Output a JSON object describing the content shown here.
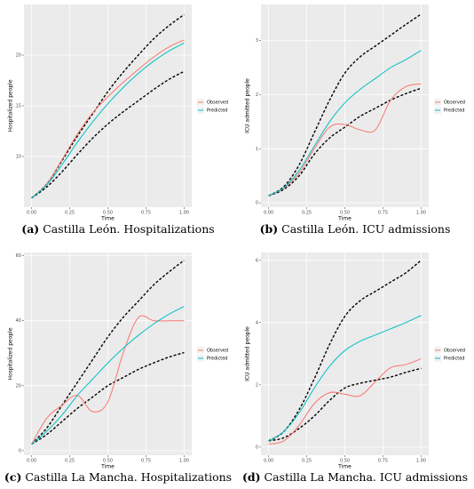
{
  "chart_data": [
    {
      "type": "line",
      "caption_label": "(a)",
      "caption": "Castilla León. Hospitalizations",
      "xlabel": "Time",
      "ylabel": "Hospitalized people",
      "x": [
        0,
        0.1,
        0.2,
        0.3,
        0.4,
        0.5,
        0.6,
        0.7,
        0.8,
        0.9,
        1
      ],
      "xlim": [
        -0.05,
        1.05
      ],
      "xticks": [
        {
          "value": 0,
          "label": "0.00"
        },
        {
          "value": 0.25,
          "label": "0.25"
        },
        {
          "value": 0.5,
          "label": "0.50"
        },
        {
          "value": 0.75,
          "label": "0.75"
        },
        {
          "value": 1,
          "label": "1.00"
        }
      ],
      "ylim": [
        5,
        25
      ],
      "yticks": [
        10,
        15,
        20
      ],
      "grid": true,
      "series": [
        {
          "color": "#000000",
          "dashed": true,
          "values": [
            5.9,
            7.3,
            9.6,
            12,
            14.2,
            16.4,
            18.3,
            20,
            21.6,
            22.9,
            24
          ]
        },
        {
          "color": "#000000",
          "dashed": true,
          "values": [
            5.9,
            7,
            8.5,
            10.2,
            11.8,
            13.2,
            14.4,
            15.5,
            16.6,
            17.6,
            18.4
          ]
        },
        {
          "name": "Observed",
          "color": "#F8766D",
          "values": [
            5.9,
            7.3,
            9.7,
            12.2,
            14.3,
            15.9,
            17.3,
            18.6,
            19.8,
            20.8,
            21.5
          ]
        },
        {
          "name": "Predicted",
          "color": "#00BFC4",
          "values": [
            5.9,
            7.2,
            9.2,
            11.4,
            13.4,
            15.2,
            16.8,
            18.2,
            19.4,
            20.4,
            21.2
          ]
        }
      ]
    },
    {
      "type": "line",
      "caption_label": "(b)",
      "caption": "Castilla León. ICU admissions",
      "xlabel": "Time",
      "ylabel": "ICU admitted people",
      "x": [
        0,
        0.1,
        0.2,
        0.3,
        0.4,
        0.5,
        0.6,
        0.7,
        0.8,
        0.9,
        1
      ],
      "xlim": [
        -0.05,
        1.05
      ],
      "xticks": [
        {
          "value": 0,
          "label": "0.00"
        },
        {
          "value": 0.25,
          "label": "0.25"
        },
        {
          "value": 0.5,
          "label": "0.50"
        },
        {
          "value": 0.75,
          "label": "0.75"
        },
        {
          "value": 1,
          "label": "1.00"
        }
      ],
      "ylim": [
        -0.08,
        3.67
      ],
      "yticks": [
        0,
        1,
        2,
        3
      ],
      "grid": true,
      "series": [
        {
          "color": "#000000",
          "dashed": true,
          "values": [
            0.13,
            0.3,
            0.7,
            1.3,
            1.9,
            2.4,
            2.7,
            2.9,
            3.1,
            3.3,
            3.49
          ]
        },
        {
          "color": "#000000",
          "dashed": true,
          "values": [
            0.13,
            0.25,
            0.5,
            0.9,
            1.2,
            1.4,
            1.6,
            1.75,
            1.9,
            2.02,
            2.12
          ]
        },
        {
          "name": "Observed",
          "color": "#F8766D",
          "values": [
            0.13,
            0.27,
            0.55,
            1.0,
            1.4,
            1.45,
            1.35,
            1.35,
            1.9,
            2.15,
            2.2
          ]
        },
        {
          "name": "Predicted",
          "color": "#00BFC4",
          "values": [
            0.13,
            0.28,
            0.6,
            1.05,
            1.5,
            1.85,
            2.1,
            2.3,
            2.5,
            2.65,
            2.82
          ]
        }
      ]
    },
    {
      "type": "line",
      "caption_label": "(c)",
      "caption": "Castilla La Mancha. Hospitalizations",
      "xlabel": "Time",
      "ylabel": "Hospitalized people",
      "x": [
        0,
        0.1,
        0.2,
        0.3,
        0.4,
        0.5,
        0.6,
        0.7,
        0.8,
        0.9,
        1
      ],
      "xlim": [
        -0.05,
        1.05
      ],
      "xticks": [
        {
          "value": 0,
          "label": "0.00"
        },
        {
          "value": 0.25,
          "label": "0.25"
        },
        {
          "value": 0.5,
          "label": "0.50"
        },
        {
          "value": 0.75,
          "label": "0.75"
        },
        {
          "value": 1,
          "label": "1.00"
        }
      ],
      "ylim": [
        -1.4,
        61
      ],
      "yticks": [
        0,
        20,
        40,
        60
      ],
      "grid": true,
      "series": [
        {
          "color": "#000000",
          "dashed": true,
          "values": [
            2,
            7,
            14,
            21,
            28,
            35,
            41,
            46,
            51,
            55,
            58.6
          ]
        },
        {
          "color": "#000000",
          "dashed": true,
          "values": [
            2,
            5,
            9,
            13,
            16.5,
            20,
            22.5,
            25,
            27,
            28.8,
            30.2
          ]
        },
        {
          "name": "Observed",
          "color": "#F8766D",
          "values": [
            2,
            10,
            14,
            17,
            12,
            15,
            30,
            41,
            40,
            40,
            40
          ]
        },
        {
          "name": "Predicted",
          "color": "#00BFC4",
          "values": [
            2,
            6,
            11,
            17,
            22,
            27,
            31.5,
            35.5,
            39,
            42,
            44.4
          ]
        }
      ]
    },
    {
      "type": "line",
      "caption_label": "(d)",
      "caption": "Castilla La Mancha. ICU admissions",
      "xlabel": "Time",
      "ylabel": "ICU admitted people",
      "x": [
        0,
        0.1,
        0.2,
        0.3,
        0.4,
        0.5,
        0.6,
        0.7,
        0.8,
        0.9,
        1
      ],
      "xlim": [
        -0.05,
        1.05
      ],
      "xticks": [
        {
          "value": 0,
          "label": "0.00"
        },
        {
          "value": 0.25,
          "label": "0.25"
        },
        {
          "value": 0.5,
          "label": "0.50"
        },
        {
          "value": 0.75,
          "label": "0.75"
        },
        {
          "value": 1,
          "label": "1.00"
        }
      ],
      "ylim": [
        -0.26,
        6.25
      ],
      "yticks": [
        0,
        2,
        4,
        6
      ],
      "grid": true,
      "series": [
        {
          "color": "#000000",
          "dashed": true,
          "values": [
            0.2,
            0.5,
            1.2,
            2.2,
            3.3,
            4.2,
            4.7,
            5.0,
            5.3,
            5.6,
            6.0
          ]
        },
        {
          "color": "#000000",
          "dashed": true,
          "values": [
            0.2,
            0.3,
            0.6,
            1.0,
            1.5,
            1.9,
            2.05,
            2.15,
            2.25,
            2.4,
            2.53
          ]
        },
        {
          "name": "Observed",
          "color": "#F8766D",
          "values": [
            0.1,
            0.2,
            0.7,
            1.4,
            1.75,
            1.7,
            1.65,
            2.1,
            2.55,
            2.65,
            2.84
          ]
        },
        {
          "name": "Predicted",
          "color": "#00BFC4",
          "values": [
            0.2,
            0.5,
            1.1,
            1.9,
            2.6,
            3.1,
            3.4,
            3.6,
            3.8,
            4.0,
            4.23
          ]
        }
      ]
    }
  ]
}
